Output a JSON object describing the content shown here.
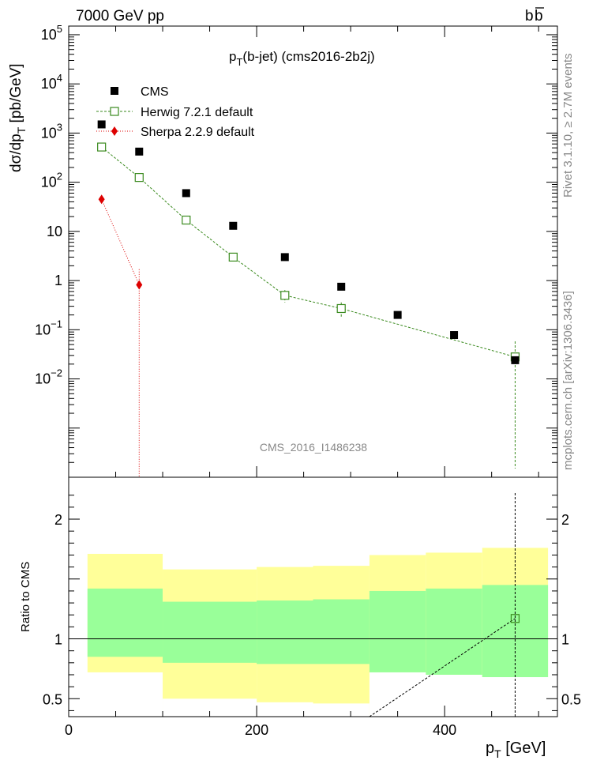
{
  "header": {
    "left": "7000 GeV pp",
    "right_main": "b",
    "right_bar": "b"
  },
  "side_labels": {
    "top": "Rivet 3.1.10, ≥ 2.7M events",
    "bottom": "mcplots.cern.ch [arXiv:1306.3436]"
  },
  "chart_data": {
    "type": "scatter",
    "title_main": "p",
    "title_sub": "T",
    "title_rest": "(b-jet) (cms2016-2b2j)",
    "watermark": "CMS_2016_I1486238",
    "xlabel_main": "p",
    "xlabel_sub": "T",
    "xlabel_rest": " [GeV]",
    "ylabel_main": "dσ/dp",
    "ylabel_sub": "T",
    "ylabel_rest": " [pb/GeV]",
    "ratio_ylabel": "Ratio to CMS",
    "xlim": [
      0,
      520
    ],
    "ylim": [
      0.0001,
      150000
    ],
    "log_y": true,
    "ratio_ylim": [
      0.35,
      2.35
    ],
    "x_ticks": [
      {
        "v": 0,
        "label": "0"
      },
      {
        "v": 200,
        "label": "200"
      },
      {
        "v": 400,
        "label": "400"
      }
    ],
    "y_ticks": [
      {
        "v": 100000,
        "b": "10",
        "e": "5"
      },
      {
        "v": 10000,
        "b": "10",
        "e": "4"
      },
      {
        "v": 1000,
        "b": "10",
        "e": "3"
      },
      {
        "v": 100,
        "b": "10",
        "e": "2"
      },
      {
        "v": 10,
        "b": "10",
        "e": ""
      },
      {
        "v": 1,
        "b": "1",
        "e": ""
      },
      {
        "v": 0.1,
        "b": "10",
        "e": "−1"
      },
      {
        "v": 0.01,
        "b": "10",
        "e": "−2"
      }
    ],
    "ratio_ticks": [
      {
        "v": 0.5,
        "label": "0.5"
      },
      {
        "v": 1,
        "label": "1"
      },
      {
        "v": 2,
        "label": "2"
      }
    ],
    "legend": [
      {
        "key": "cms",
        "label": "CMS"
      },
      {
        "key": "herwig",
        "label": "Herwig 7.2.1 default"
      },
      {
        "key": "sherpa",
        "label": "Sherpa 2.2.9 default"
      }
    ],
    "bins": [
      {
        "lo": 20,
        "hi": 50
      },
      {
        "lo": 50,
        "hi": 100
      },
      {
        "lo": 100,
        "hi": 150
      },
      {
        "lo": 150,
        "hi": 200
      },
      {
        "lo": 200,
        "hi": 260
      },
      {
        "lo": 260,
        "hi": 320
      },
      {
        "lo": 320,
        "hi": 380
      },
      {
        "lo": 380,
        "hi": 440
      },
      {
        "lo": 440,
        "hi": 510
      }
    ],
    "series": [
      {
        "name": "CMS",
        "color": "#000000",
        "x": [
          35,
          75,
          125,
          175,
          230,
          290,
          350,
          410,
          475
        ],
        "y": [
          1500,
          420,
          60,
          13,
          3.0,
          0.75,
          0.2,
          0.078,
          0.024
        ]
      },
      {
        "name": "Herwig 7.2.1 default",
        "color": "#3a8a1e",
        "x": [
          35,
          75,
          125,
          175,
          230,
          290,
          475
        ],
        "y": [
          520,
          125,
          17,
          3.0,
          0.5,
          0.27,
          0.028
        ],
        "err_lo": [
          480,
          115,
          15.5,
          2.75,
          0.36,
          0.18,
          0.00015
        ],
        "err_hi": [
          560,
          135,
          18.5,
          3.25,
          0.64,
          0.36,
          0.058
        ],
        "ratio_x": [
          320,
          475
        ],
        "ratio_y": [
          0.35,
          1.17
        ],
        "ratio_err": [
          0.35,
          2.23
        ]
      },
      {
        "name": "Sherpa 2.2.9 default",
        "color": "#dd0000",
        "x": [
          35,
          75
        ],
        "y": [
          45,
          0.82
        ],
        "err_lo": [
          40,
          0.0001
        ],
        "err_hi": [
          50,
          1.7
        ]
      }
    ],
    "ratio_bands": [
      {
        "lo": 20,
        "hi": 100,
        "y_lo": 0.72,
        "y_hi": 1.71,
        "g_lo": 0.85,
        "g_hi": 1.42
      },
      {
        "lo": 100,
        "hi": 200,
        "y_lo": 0.35,
        "y_hi": 1.58,
        "g_lo": 0.8,
        "g_hi": 1.31
      },
      {
        "lo": 200,
        "hi": 260,
        "y_lo": 0.35,
        "y_hi": 1.6,
        "g_lo": 0.79,
        "g_hi": 1.32
      },
      {
        "lo": 260,
        "hi": 320,
        "y_lo": 0.35,
        "y_hi": 1.61,
        "g_lo": 0.79,
        "g_hi": 1.33
      },
      {
        "lo": 320,
        "hi": 380,
        "y_lo": 0.72,
        "y_hi": 1.7,
        "g_lo": 0.72,
        "g_hi": 1.4
      },
      {
        "lo": 380,
        "hi": 440,
        "y_lo": 0.7,
        "y_hi": 1.72,
        "g_lo": 0.7,
        "g_hi": 1.42
      },
      {
        "lo": 440,
        "hi": 510,
        "y_lo": 0.68,
        "y_hi": 1.76,
        "g_lo": 0.68,
        "g_hi": 1.45
      }
    ],
    "band_colors": {
      "yellow": "#ffff99",
      "green": "#99ff99"
    },
    "white_gaps": [
      {
        "lo": 100,
        "hi": 200,
        "y_hi": 0.5
      },
      {
        "lo": 200,
        "hi": 260,
        "y_hi": 0.47
      },
      {
        "lo": 260,
        "hi": 320,
        "y_hi": 0.46
      }
    ]
  }
}
